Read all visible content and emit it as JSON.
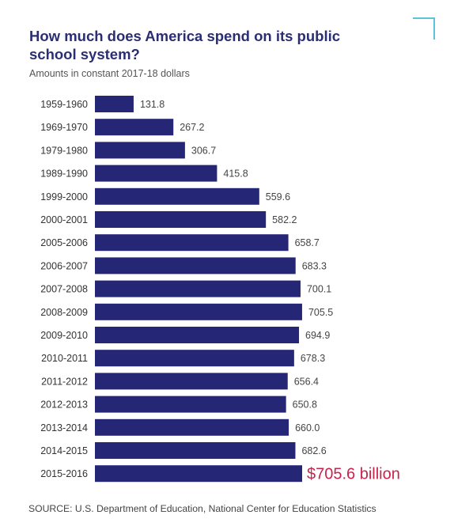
{
  "title": "How much does America spend on its public school system?",
  "subtitle": "Amounts in constant 2017-18 dollars",
  "source": "SOURCE: U.S. Department of Education, National Center for Education Statistics",
  "colors": {
    "bar": "#262677",
    "highlight_label": "#c8234a",
    "title": "#2b2e72",
    "corner_accent": "#5ec3d9"
  },
  "chart_data": {
    "type": "bar",
    "orientation": "horizontal",
    "title": "How much does America spend on its public school system?",
    "subtitle": "Amounts in constant 2017-18 dollars",
    "categories": [
      "1959-1960",
      "1969-1970",
      "1979-1980",
      "1989-1990",
      "1999-2000",
      "2000-2001",
      "2005-2006",
      "2006-2007",
      "2007-2008",
      "2008-2009",
      "2009-2010",
      "2010-2011",
      "2011-2012",
      "2012-2013",
      "2013-2014",
      "2014-2015",
      "2015-2016"
    ],
    "values": [
      131.8,
      267.2,
      306.7,
      415.8,
      559.6,
      582.2,
      658.7,
      683.3,
      700.1,
      705.5,
      694.9,
      678.3,
      656.4,
      650.8,
      660.0,
      682.6,
      705.6
    ],
    "value_labels": [
      "131.8",
      "267.2",
      "306.7",
      "415.8",
      "559.6",
      "582.2",
      "658.7",
      "683.3",
      "700.1",
      "705.5",
      "694.9",
      "678.3",
      "656.4",
      "650.8",
      "660.0",
      "682.6",
      "$705.6 billion"
    ],
    "highlight_index": 16,
    "xlim": [
      0,
      705.6
    ],
    "grid": false,
    "legend": "none"
  }
}
